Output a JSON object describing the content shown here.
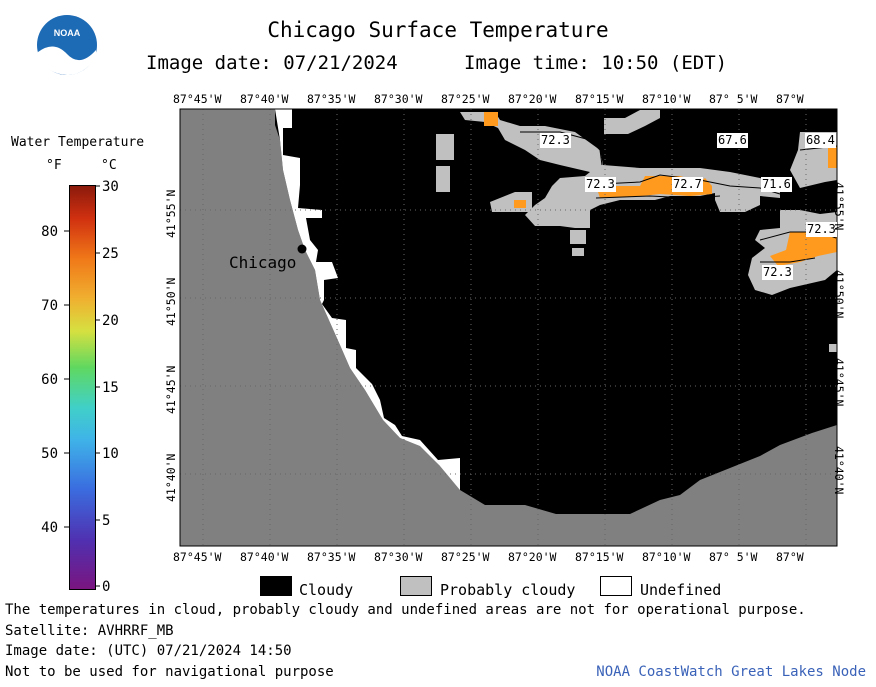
{
  "header": {
    "title": "Chicago Surface Temperature",
    "image_date": "Image date: 07/21/2024",
    "image_time": "Image time: 10:50 (EDT)"
  },
  "logo": {
    "text": "NOAA"
  },
  "colorbar": {
    "title": "Water Temperature",
    "unit_f": "°F",
    "unit_c": "°C",
    "f_ticks": [
      "80",
      "70",
      "60",
      "50",
      "40"
    ],
    "c_ticks": [
      "30",
      "25",
      "20",
      "15",
      "10",
      "5",
      "0"
    ]
  },
  "map": {
    "lon_labels": [
      "87°45'W",
      "87°40'W",
      "87°35'W",
      "87°30'W",
      "87°25'W",
      "87°20'W",
      "87°15'W",
      "87°10'W",
      "87° 5'W",
      "87°W"
    ],
    "lat_labels": [
      "41°55'N",
      "41°50'N",
      "41°45'N",
      "41°40'N"
    ],
    "city": "Chicago",
    "temp_labels": [
      "72.3",
      "67.6",
      "68.4",
      "72.3",
      "72.7",
      "71.6",
      "72.3",
      "72.3"
    ]
  },
  "key": {
    "cloudy": "Cloudy",
    "probably_cloudy": "Probably cloudy",
    "undefined": "Undefined"
  },
  "colors": {
    "land": "#808080",
    "cloud": "#000000",
    "probably_cloudy": "#c0c0c0",
    "undefined": "#ffffff",
    "warm_water": "#ff9a1e",
    "credit": "#3a62b8"
  },
  "footer": {
    "line1": "The temperatures in cloud, probably cloudy and undefined areas are not for operational purpose.",
    "line2": "Satellite: AVHRRF_MB",
    "line3": "Image date: (UTC) 07/21/2024  14:50",
    "line4": "Not to be used for navigational purpose",
    "credit": "NOAA CoastWatch Great Lakes Node"
  }
}
